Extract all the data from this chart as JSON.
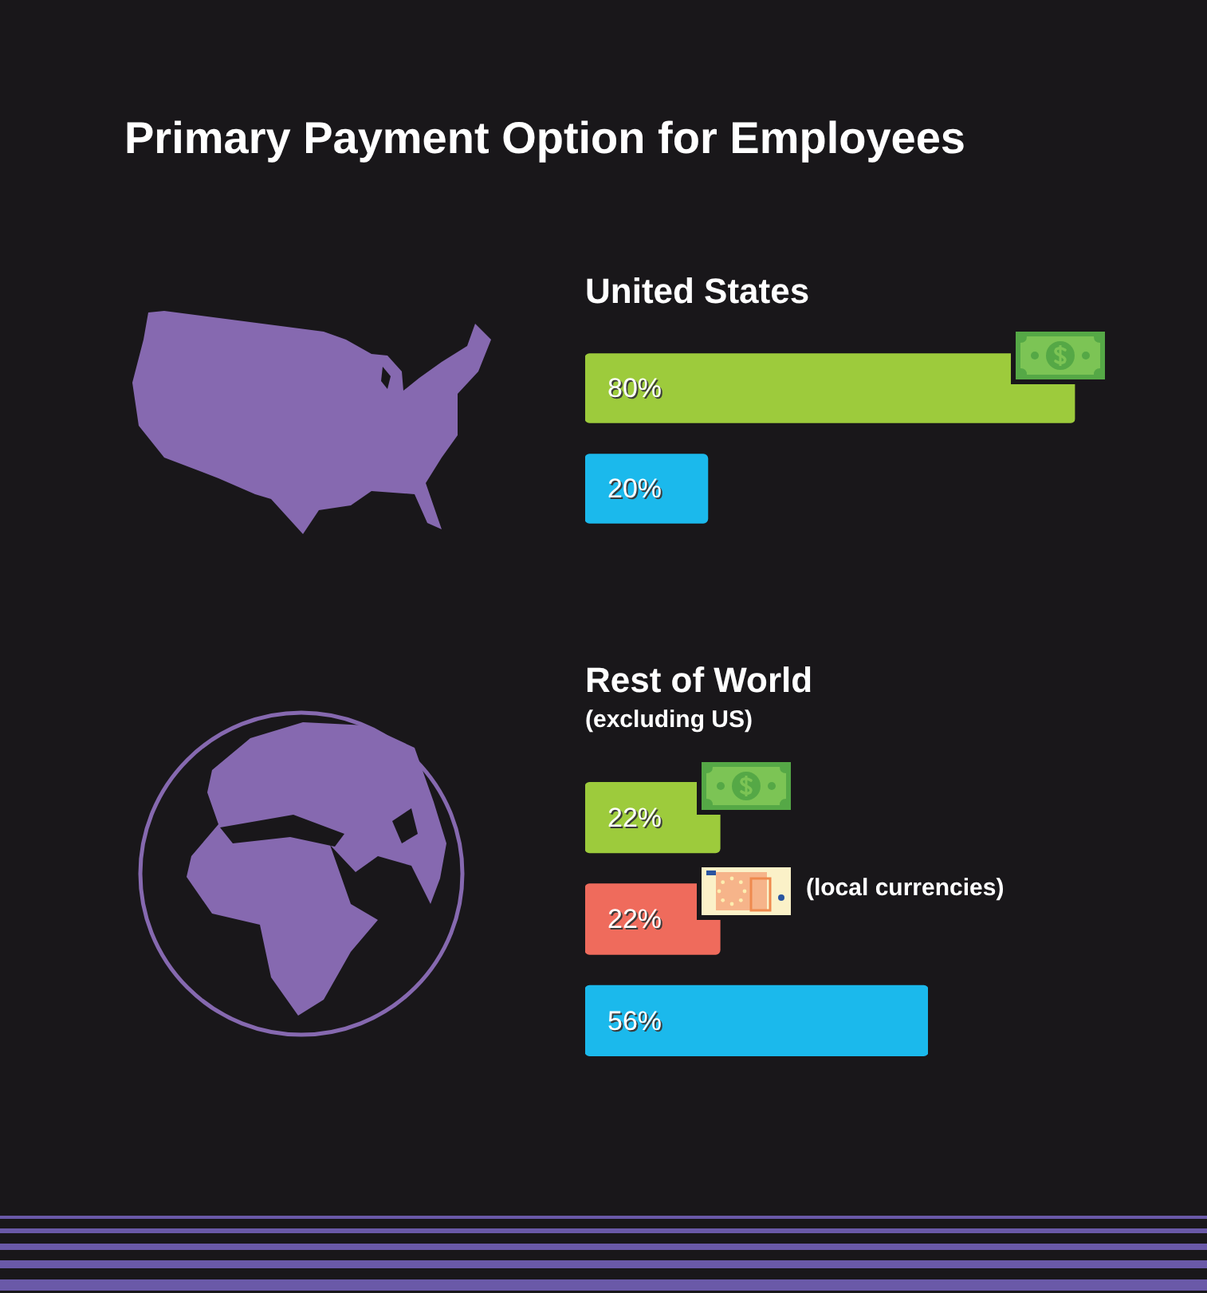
{
  "chart_data": [
    {
      "type": "bar",
      "title": "Primary Payment Option for Employees",
      "subtitle": "United States",
      "orientation": "horizontal",
      "categories": [
        null,
        null
      ],
      "values": [
        80,
        20
      ],
      "colors": [
        "#9dcb3c",
        "#1bb9ec"
      ],
      "value_labels": [
        "80%",
        "20%"
      ],
      "tick_labels": false
    },
    {
      "type": "bar",
      "title": "Rest of World",
      "subtitle": "(excluding US)",
      "orientation": "horizontal",
      "categories": [
        null,
        "(local currencies)",
        null
      ],
      "values": [
        22,
        22,
        56
      ],
      "colors": [
        "#9dcb3c",
        "#ef6b5c",
        "#1bb9ec"
      ],
      "value_labels": [
        "22%",
        "22%",
        "56%"
      ],
      "tick_labels": false
    }
  ]
}
